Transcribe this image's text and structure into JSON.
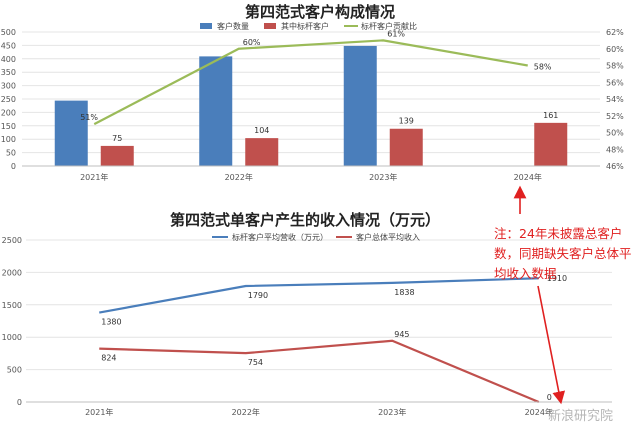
{
  "chart_data": [
    {
      "type": "bar",
      "title": "第四范式客户构成情况",
      "categories": [
        "2021年",
        "2022年",
        "2023年",
        "2024年"
      ],
      "series": [
        {
          "name": "客户数量",
          "kind": "bar",
          "axis": "left",
          "color": "#4a7ebb",
          "values": [
            244,
            409,
            448,
            null
          ]
        },
        {
          "name": "其中标杆客户",
          "kind": "bar",
          "axis": "left",
          "color": "#c0504d",
          "values": [
            75,
            104,
            139,
            161
          ],
          "labels": [
            "75",
            "104",
            "139",
            "161"
          ]
        },
        {
          "name": "标杆客户贡献比",
          "kind": "line",
          "axis": "right",
          "color": "#9bbb59",
          "values": [
            51,
            60,
            61,
            58
          ],
          "labels": [
            "51%",
            "60%",
            "61%",
            "58%"
          ]
        }
      ],
      "ylim_left": [
        0,
        500
      ],
      "yticks_left": [
        "0",
        "50",
        "100",
        "150",
        "200",
        "250",
        "300",
        "350",
        "400",
        "450",
        "500"
      ],
      "ylim_right": [
        46,
        62
      ],
      "yticks_right": [
        "46%",
        "48%",
        "50%",
        "52%",
        "54%",
        "56%",
        "58%",
        "60%",
        "62%"
      ],
      "legend": "top"
    },
    {
      "type": "line",
      "title": "第四范式单客户产生的收入情况（万元）",
      "categories": [
        "2021年",
        "2022年",
        "2023年",
        "2024年"
      ],
      "series": [
        {
          "name": "标杆客户平均营收（万元）",
          "color": "#4a7ebb",
          "values": [
            1380,
            1790,
            1838,
            1910
          ],
          "labels": [
            "1380",
            "1790",
            "1838",
            "1910"
          ]
        },
        {
          "name": "客户总体平均收入",
          "color": "#c0504d",
          "values": [
            824,
            754,
            945,
            0
          ],
          "labels": [
            "824",
            "754",
            "945",
            "0"
          ]
        }
      ],
      "ylim": [
        0,
        2500
      ],
      "yticks": [
        "0",
        "500",
        "1000",
        "1500",
        "2000",
        "2500"
      ],
      "legend": "top"
    }
  ],
  "annotation": {
    "lines": [
      "注：24年未披露总客户",
      "数，同期缺失客户总体平",
      "均收入数据"
    ],
    "color": "#e02020"
  },
  "watermark": "新浪研究院"
}
